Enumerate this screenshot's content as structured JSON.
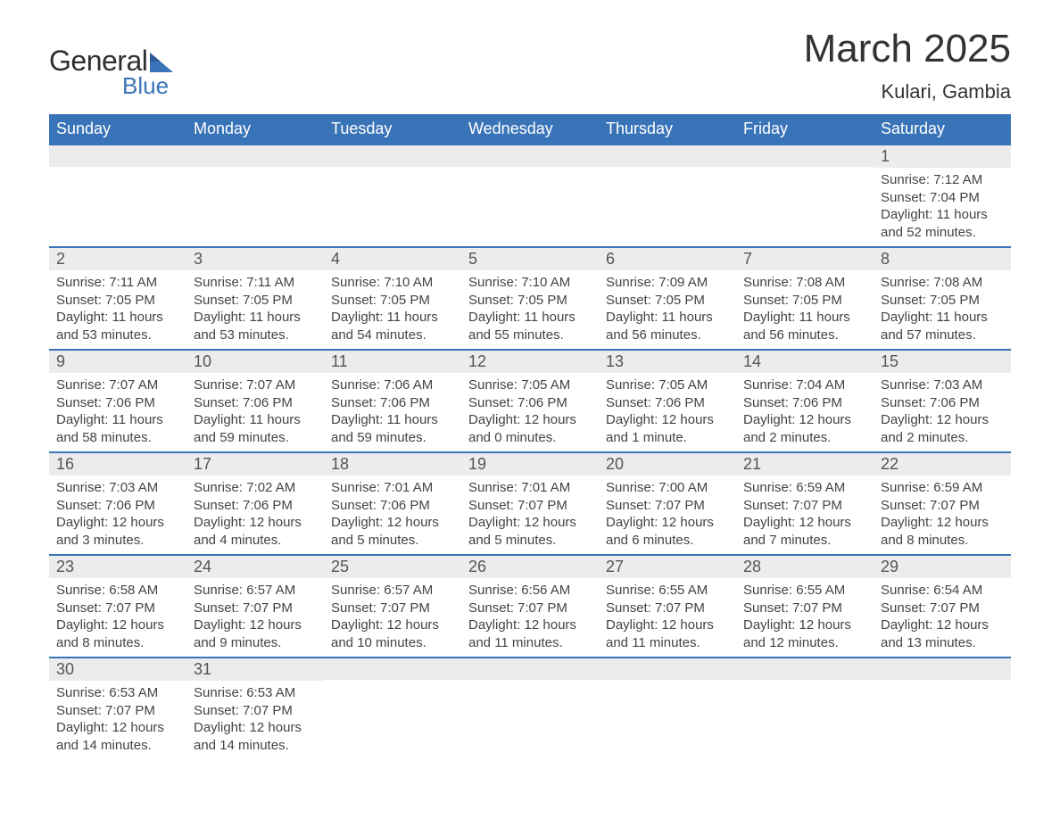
{
  "brand": {
    "name1": "General",
    "name2": "Blue",
    "color_primary": "#3a74b8",
    "color_text": "#2f2f2f"
  },
  "title": "March 2025",
  "location": "Kulari, Gambia",
  "calendar": {
    "header_bg": "#3a74b8",
    "header_fg": "#ffffff",
    "daynum_bg": "#ececec",
    "row_border": "#3a74b8",
    "days_of_week": [
      "Sunday",
      "Monday",
      "Tuesday",
      "Wednesday",
      "Thursday",
      "Friday",
      "Saturday"
    ],
    "weeks": [
      [
        {
          "blank": true
        },
        {
          "blank": true
        },
        {
          "blank": true
        },
        {
          "blank": true
        },
        {
          "blank": true
        },
        {
          "blank": true
        },
        {
          "day": "1",
          "sunrise": "Sunrise: 7:12 AM",
          "sunset": "Sunset: 7:04 PM",
          "daylight": "Daylight: 11 hours and 52 minutes."
        }
      ],
      [
        {
          "day": "2",
          "sunrise": "Sunrise: 7:11 AM",
          "sunset": "Sunset: 7:05 PM",
          "daylight": "Daylight: 11 hours and 53 minutes."
        },
        {
          "day": "3",
          "sunrise": "Sunrise: 7:11 AM",
          "sunset": "Sunset: 7:05 PM",
          "daylight": "Daylight: 11 hours and 53 minutes."
        },
        {
          "day": "4",
          "sunrise": "Sunrise: 7:10 AM",
          "sunset": "Sunset: 7:05 PM",
          "daylight": "Daylight: 11 hours and 54 minutes."
        },
        {
          "day": "5",
          "sunrise": "Sunrise: 7:10 AM",
          "sunset": "Sunset: 7:05 PM",
          "daylight": "Daylight: 11 hours and 55 minutes."
        },
        {
          "day": "6",
          "sunrise": "Sunrise: 7:09 AM",
          "sunset": "Sunset: 7:05 PM",
          "daylight": "Daylight: 11 hours and 56 minutes."
        },
        {
          "day": "7",
          "sunrise": "Sunrise: 7:08 AM",
          "sunset": "Sunset: 7:05 PM",
          "daylight": "Daylight: 11 hours and 56 minutes."
        },
        {
          "day": "8",
          "sunrise": "Sunrise: 7:08 AM",
          "sunset": "Sunset: 7:05 PM",
          "daylight": "Daylight: 11 hours and 57 minutes."
        }
      ],
      [
        {
          "day": "9",
          "sunrise": "Sunrise: 7:07 AM",
          "sunset": "Sunset: 7:06 PM",
          "daylight": "Daylight: 11 hours and 58 minutes."
        },
        {
          "day": "10",
          "sunrise": "Sunrise: 7:07 AM",
          "sunset": "Sunset: 7:06 PM",
          "daylight": "Daylight: 11 hours and 59 minutes."
        },
        {
          "day": "11",
          "sunrise": "Sunrise: 7:06 AM",
          "sunset": "Sunset: 7:06 PM",
          "daylight": "Daylight: 11 hours and 59 minutes."
        },
        {
          "day": "12",
          "sunrise": "Sunrise: 7:05 AM",
          "sunset": "Sunset: 7:06 PM",
          "daylight": "Daylight: 12 hours and 0 minutes."
        },
        {
          "day": "13",
          "sunrise": "Sunrise: 7:05 AM",
          "sunset": "Sunset: 7:06 PM",
          "daylight": "Daylight: 12 hours and 1 minute."
        },
        {
          "day": "14",
          "sunrise": "Sunrise: 7:04 AM",
          "sunset": "Sunset: 7:06 PM",
          "daylight": "Daylight: 12 hours and 2 minutes."
        },
        {
          "day": "15",
          "sunrise": "Sunrise: 7:03 AM",
          "sunset": "Sunset: 7:06 PM",
          "daylight": "Daylight: 12 hours and 2 minutes."
        }
      ],
      [
        {
          "day": "16",
          "sunrise": "Sunrise: 7:03 AM",
          "sunset": "Sunset: 7:06 PM",
          "daylight": "Daylight: 12 hours and 3 minutes."
        },
        {
          "day": "17",
          "sunrise": "Sunrise: 7:02 AM",
          "sunset": "Sunset: 7:06 PM",
          "daylight": "Daylight: 12 hours and 4 minutes."
        },
        {
          "day": "18",
          "sunrise": "Sunrise: 7:01 AM",
          "sunset": "Sunset: 7:06 PM",
          "daylight": "Daylight: 12 hours and 5 minutes."
        },
        {
          "day": "19",
          "sunrise": "Sunrise: 7:01 AM",
          "sunset": "Sunset: 7:07 PM",
          "daylight": "Daylight: 12 hours and 5 minutes."
        },
        {
          "day": "20",
          "sunrise": "Sunrise: 7:00 AM",
          "sunset": "Sunset: 7:07 PM",
          "daylight": "Daylight: 12 hours and 6 minutes."
        },
        {
          "day": "21",
          "sunrise": "Sunrise: 6:59 AM",
          "sunset": "Sunset: 7:07 PM",
          "daylight": "Daylight: 12 hours and 7 minutes."
        },
        {
          "day": "22",
          "sunrise": "Sunrise: 6:59 AM",
          "sunset": "Sunset: 7:07 PM",
          "daylight": "Daylight: 12 hours and 8 minutes."
        }
      ],
      [
        {
          "day": "23",
          "sunrise": "Sunrise: 6:58 AM",
          "sunset": "Sunset: 7:07 PM",
          "daylight": "Daylight: 12 hours and 8 minutes."
        },
        {
          "day": "24",
          "sunrise": "Sunrise: 6:57 AM",
          "sunset": "Sunset: 7:07 PM",
          "daylight": "Daylight: 12 hours and 9 minutes."
        },
        {
          "day": "25",
          "sunrise": "Sunrise: 6:57 AM",
          "sunset": "Sunset: 7:07 PM",
          "daylight": "Daylight: 12 hours and 10 minutes."
        },
        {
          "day": "26",
          "sunrise": "Sunrise: 6:56 AM",
          "sunset": "Sunset: 7:07 PM",
          "daylight": "Daylight: 12 hours and 11 minutes."
        },
        {
          "day": "27",
          "sunrise": "Sunrise: 6:55 AM",
          "sunset": "Sunset: 7:07 PM",
          "daylight": "Daylight: 12 hours and 11 minutes."
        },
        {
          "day": "28",
          "sunrise": "Sunrise: 6:55 AM",
          "sunset": "Sunset: 7:07 PM",
          "daylight": "Daylight: 12 hours and 12 minutes."
        },
        {
          "day": "29",
          "sunrise": "Sunrise: 6:54 AM",
          "sunset": "Sunset: 7:07 PM",
          "daylight": "Daylight: 12 hours and 13 minutes."
        }
      ],
      [
        {
          "day": "30",
          "sunrise": "Sunrise: 6:53 AM",
          "sunset": "Sunset: 7:07 PM",
          "daylight": "Daylight: 12 hours and 14 minutes."
        },
        {
          "day": "31",
          "sunrise": "Sunrise: 6:53 AM",
          "sunset": "Sunset: 7:07 PM",
          "daylight": "Daylight: 12 hours and 14 minutes."
        },
        {
          "blank": true
        },
        {
          "blank": true
        },
        {
          "blank": true
        },
        {
          "blank": true
        },
        {
          "blank": true
        }
      ]
    ]
  }
}
